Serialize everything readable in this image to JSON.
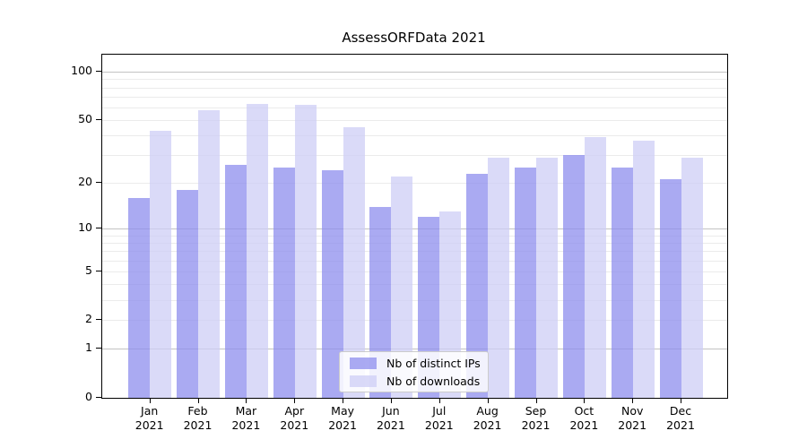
{
  "chart_data": {
    "type": "bar",
    "title": "AssessORFData 2021",
    "categories": [
      "Jan 2021",
      "Feb 2021",
      "Mar 2021",
      "Apr 2021",
      "May 2021",
      "Jun 2021",
      "Jul 2021",
      "Aug 2021",
      "Sep 2021",
      "Oct 2021",
      "Nov 2021",
      "Dec 2021"
    ],
    "series": [
      {
        "name": "Nb of distinct IPs",
        "color": "#8e8eee",
        "alpha": 0.75,
        "values": [
          16,
          18,
          26,
          25,
          24,
          14,
          12,
          23,
          25,
          30,
          25,
          21
        ]
      },
      {
        "name": "Nb of downloads",
        "color": "#cecef6",
        "alpha": 0.75,
        "values": [
          43,
          58,
          63,
          62,
          45,
          22,
          13,
          29,
          29,
          39,
          37,
          29
        ]
      }
    ],
    "xlabel": "",
    "ylabel": "",
    "yscale": "log1p",
    "ylim": [
      0,
      128
    ],
    "yticks": [
      100,
      50,
      20,
      10,
      5,
      2,
      1,
      0
    ],
    "major_gridlines": [
      1,
      10,
      100
    ],
    "minor_gridlines": [
      2,
      3,
      4,
      5,
      6,
      7,
      8,
      9,
      20,
      30,
      40,
      50,
      60,
      70,
      80,
      90
    ],
    "grid": true,
    "legend_position": "lower-center",
    "colors": {
      "distinct_ips_bar": "#8e8eee",
      "downloads_bar": "#cecef6",
      "major_grid": "#c3c3c3",
      "minor_grid": "#ebebeb",
      "axis": "#000000"
    }
  }
}
